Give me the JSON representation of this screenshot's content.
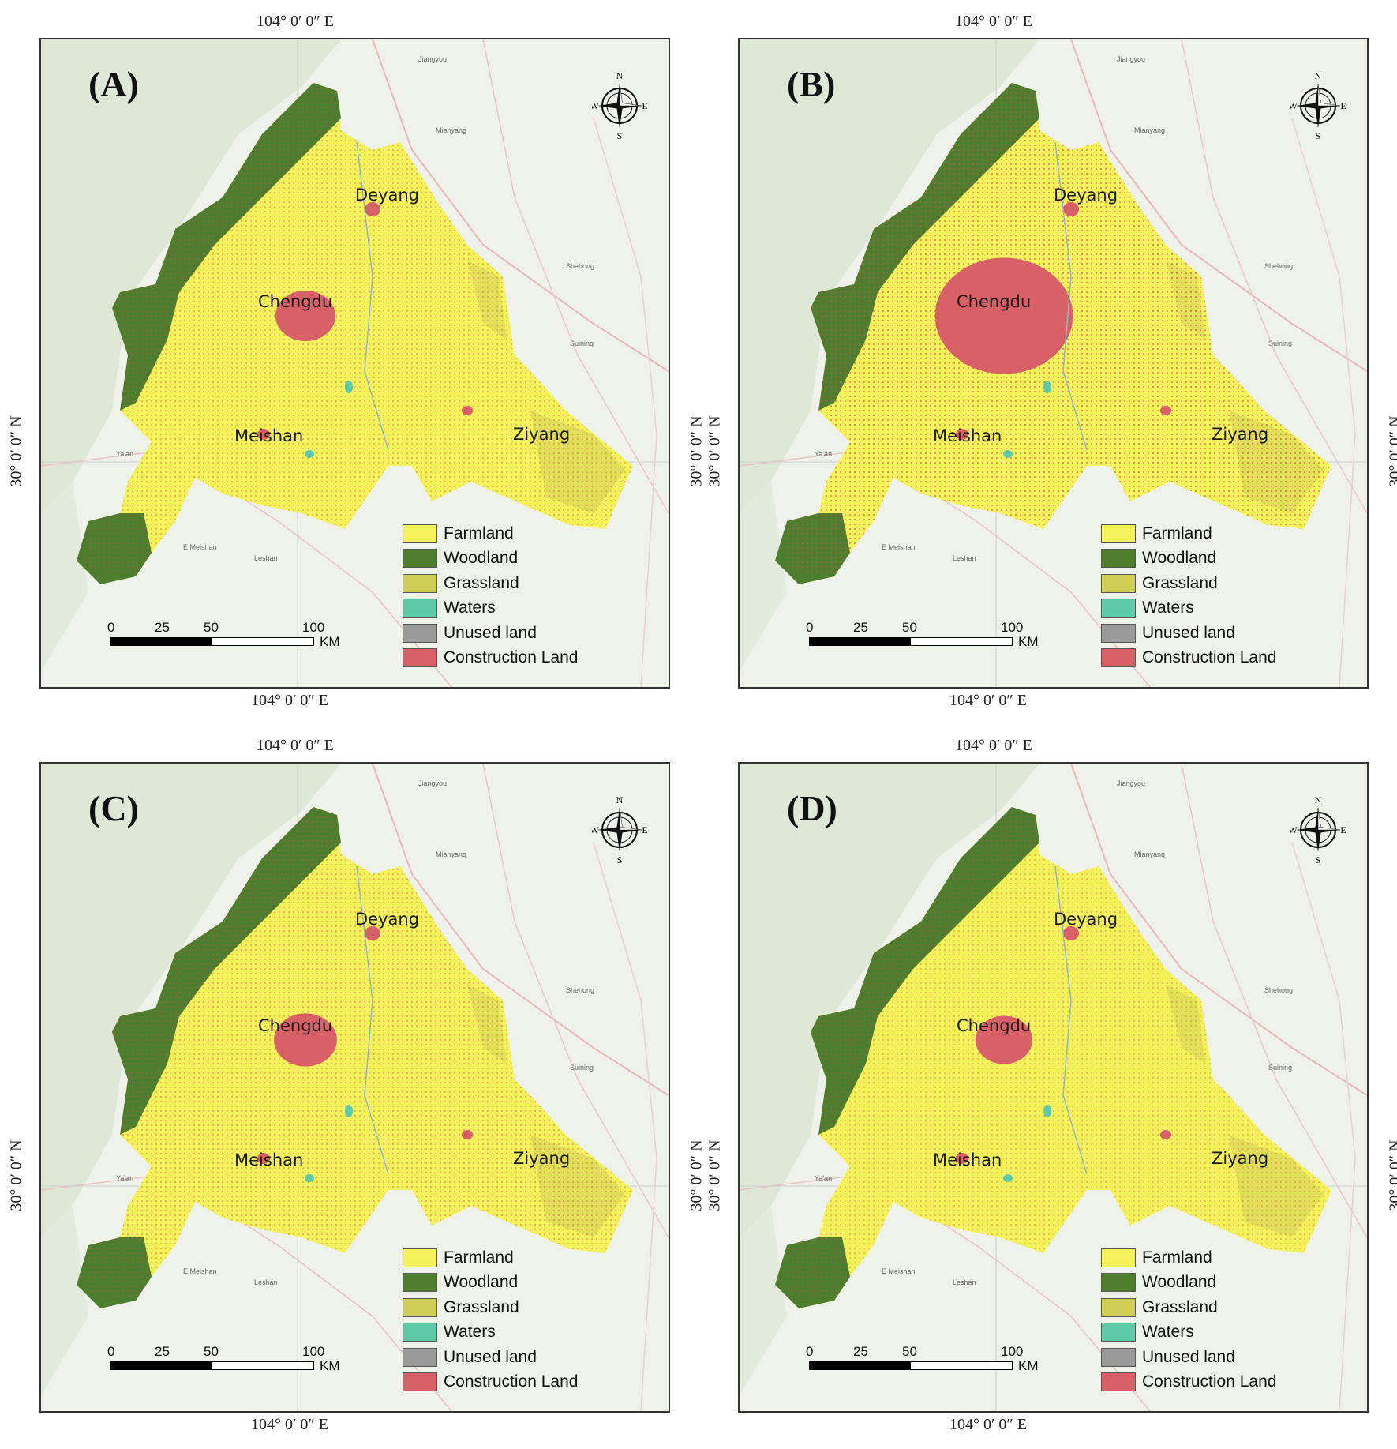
{
  "coords": {
    "lon": "104°  0′ 0″ E",
    "lat": "30°  0′ 0″ N"
  },
  "panels": [
    {
      "label": "(A)"
    },
    {
      "label": "(B)"
    },
    {
      "label": "(C)"
    },
    {
      "label": "(D)"
    }
  ],
  "cities": {
    "deyang": "Deyang",
    "chengdu": "Chengdu",
    "meishan": "Meishan",
    "ziyang": "Ziyang"
  },
  "towns": {
    "jiangyou": "Jiangyou",
    "mianyang": "Mianyang",
    "shehong": "Shehong",
    "suining": "Suining",
    "yaan": "Ya'an",
    "emeishan": "E Meishan",
    "leshan": "Leshan"
  },
  "compass": {
    "n": "N",
    "s": "S",
    "e": "E",
    "w": "W"
  },
  "legend": [
    {
      "label": "Farmland",
      "color": "#f4f25a"
    },
    {
      "label": "Woodland",
      "color": "#4e7d2d"
    },
    {
      "label": "Grassland",
      "color": "#cfcf55"
    },
    {
      "label": "Waters",
      "color": "#5fcaa8"
    },
    {
      "label": "Unused land",
      "color": "#9a9a9a"
    },
    {
      "label": "Construction Land",
      "color": "#d86067"
    }
  ],
  "scale": {
    "ticks": [
      "0",
      "25",
      "50",
      "100"
    ],
    "unit": "KM"
  }
}
